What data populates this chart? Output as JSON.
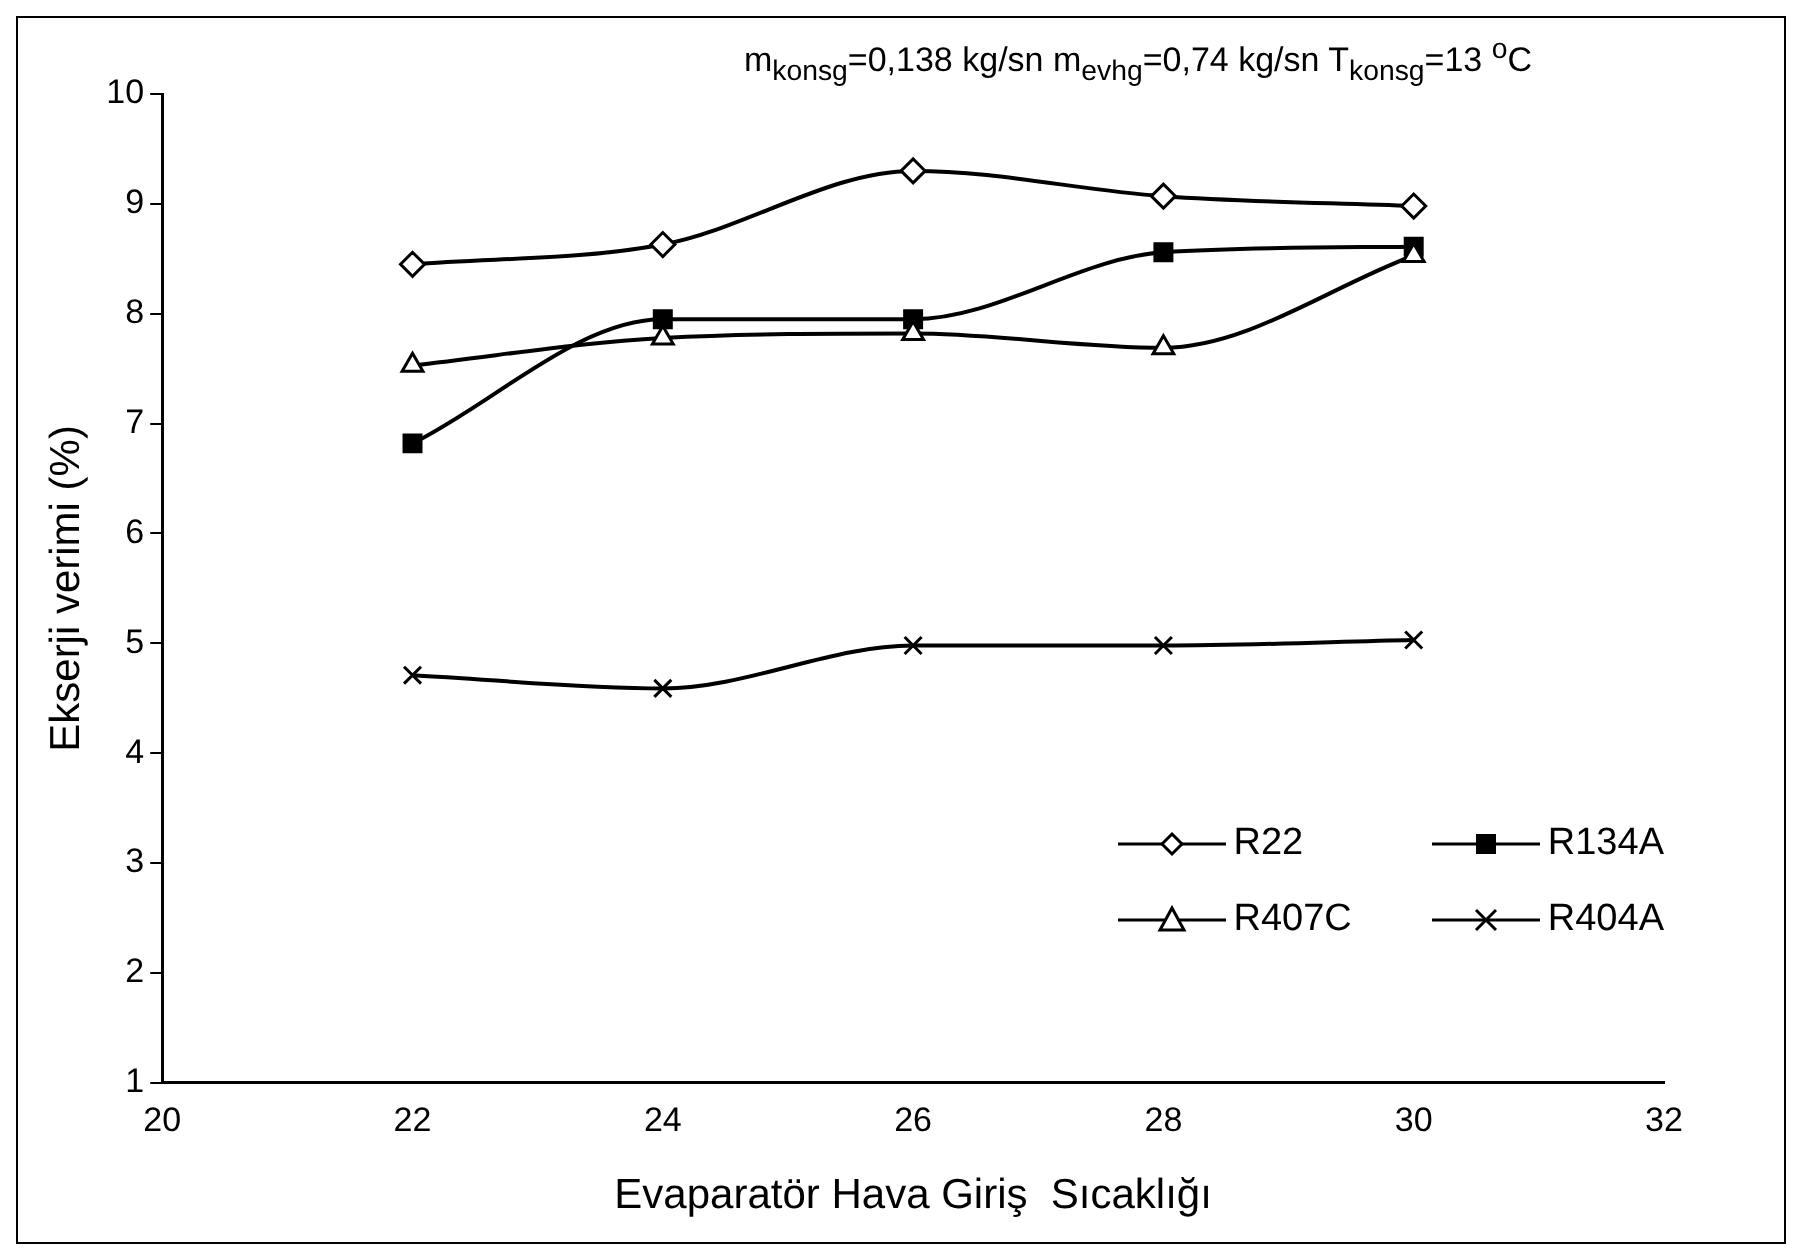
{
  "chart_data": {
    "type": "line",
    "title": "m$_{konsg}$=0,138 kg/sn m$_{evhg}$=0,74 kg/sn T$_{konsg}$=13 $^{o}$C",
    "xlabel": "Evaparatör Hava Giriş  Sıcaklığı",
    "ylabel": "Ekserji verimi (%)",
    "x": [
      22,
      24,
      26,
      28,
      30
    ],
    "series": [
      {
        "name": "R22",
        "color": "#000000",
        "marker": "diamond",
        "values": [
          8.45,
          8.63,
          9.3,
          9.07,
          8.98
        ]
      },
      {
        "name": "R134A",
        "color": "#000000",
        "marker": "square",
        "values": [
          6.82,
          7.95,
          7.95,
          8.56,
          8.61
        ]
      },
      {
        "name": "R407C",
        "color": "#000000",
        "marker": "triangle",
        "values": [
          7.53,
          7.78,
          7.82,
          7.69,
          8.53
        ]
      },
      {
        "name": "R404A",
        "color": "#000000",
        "marker": "cross",
        "values": [
          4.71,
          4.59,
          4.98,
          4.98,
          5.03
        ]
      }
    ],
    "xlim": [
      20,
      32
    ],
    "xticks": [
      20,
      22,
      24,
      26,
      28,
      30,
      32
    ],
    "ylim": [
      1,
      10
    ],
    "yticks": [
      1,
      2,
      3,
      4,
      5,
      6,
      7,
      8,
      9,
      10
    ],
    "grid": false,
    "legend": "bottom right",
    "line_style": "solid"
  }
}
